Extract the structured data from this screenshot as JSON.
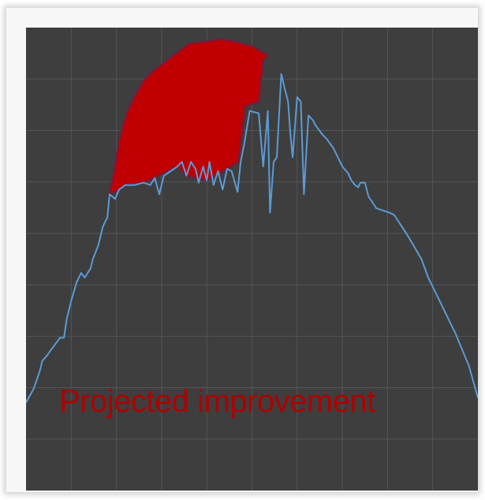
{
  "chart_data": {
    "type": "area",
    "title": "",
    "xlabel": "",
    "ylabel": "",
    "grid": true,
    "xlim": [
      0,
      100
    ],
    "ylim": [
      0,
      100
    ],
    "annotation": "Projected improvement",
    "colors": {
      "background": "#3e3e3e",
      "grid": "#555555",
      "series_line": "#5b9bd5",
      "projection_fill": "#c00000",
      "projection_stroke": "#7a1a3a",
      "annotation_text": "#b00000"
    },
    "series": [
      {
        "values": [
          [
            0,
            19
          ],
          [
            1.7,
            22
          ],
          [
            3.1,
            26
          ],
          [
            3.6,
            28
          ],
          [
            4.5,
            29
          ],
          [
            6,
            31
          ],
          [
            7.5,
            33
          ],
          [
            8.4,
            33
          ],
          [
            9,
            37
          ],
          [
            10,
            41
          ],
          [
            11.2,
            45
          ],
          [
            12.2,
            47
          ],
          [
            13,
            46
          ],
          [
            14.3,
            48
          ],
          [
            14.8,
            50
          ],
          [
            16,
            53
          ],
          [
            17,
            57
          ],
          [
            18,
            59
          ],
          [
            18.5,
            64
          ],
          [
            19.7,
            63
          ],
          [
            20.6,
            65
          ],
          [
            22,
            66
          ],
          [
            24,
            66
          ],
          [
            26,
            66.5
          ],
          [
            27.5,
            66
          ],
          [
            28.5,
            67.5
          ],
          [
            29.5,
            64
          ],
          [
            30.5,
            68
          ],
          [
            32,
            69
          ],
          [
            33.5,
            70
          ],
          [
            34.5,
            71
          ],
          [
            35.5,
            68
          ],
          [
            36.5,
            71
          ],
          [
            37.5,
            69.5
          ],
          [
            38.2,
            66.5
          ],
          [
            39.2,
            70
          ],
          [
            40,
            67
          ],
          [
            40.6,
            71
          ],
          [
            41.5,
            66
          ],
          [
            42.5,
            69
          ],
          [
            43.5,
            65
          ],
          [
            44.5,
            69.5
          ],
          [
            45.5,
            69
          ],
          [
            46.8,
            64.5
          ],
          [
            47.5,
            71
          ],
          [
            48.3,
            75
          ],
          [
            49.5,
            82
          ],
          [
            51.5,
            81.5
          ],
          [
            52.5,
            70
          ],
          [
            53.5,
            82
          ],
          [
            54,
            60
          ],
          [
            54.8,
            71
          ],
          [
            55.5,
            72
          ],
          [
            56.5,
            90
          ],
          [
            57.2,
            87
          ],
          [
            58,
            84
          ],
          [
            58.5,
            77
          ],
          [
            59,
            72
          ],
          [
            60,
            85
          ],
          [
            60.8,
            84
          ],
          [
            61.5,
            64
          ],
          [
            62.5,
            81
          ],
          [
            63.5,
            80
          ],
          [
            64,
            79
          ],
          [
            65.5,
            77
          ],
          [
            66.5,
            76
          ],
          [
            68,
            74
          ],
          [
            69,
            72
          ],
          [
            70,
            70
          ],
          [
            71.3,
            68.5
          ],
          [
            72,
            67
          ],
          [
            72.8,
            66
          ],
          [
            73.5,
            65.5
          ],
          [
            74,
            66.5
          ],
          [
            75,
            66.5
          ],
          [
            75.8,
            63.5
          ],
          [
            76.5,
            62.5
          ],
          [
            77.5,
            61
          ],
          [
            79,
            60.5
          ],
          [
            80.5,
            60
          ],
          [
            81.5,
            59.5
          ],
          [
            82.5,
            58
          ],
          [
            83.5,
            56.5
          ],
          [
            84.5,
            55
          ],
          [
            86,
            52.5
          ],
          [
            87.5,
            50
          ],
          [
            89,
            46
          ],
          [
            90.5,
            43
          ],
          [
            92,
            40
          ],
          [
            93.5,
            37
          ],
          [
            95,
            34
          ],
          [
            96.5,
            30.5
          ],
          [
            98,
            27
          ],
          [
            100,
            20
          ]
        ]
      }
    ],
    "projection_upper": [
      [
        18.5,
        64
      ],
      [
        19.5,
        69
      ],
      [
        20.5,
        75
      ],
      [
        21.5,
        79
      ],
      [
        22.5,
        82
      ],
      [
        24,
        85
      ],
      [
        26,
        88.5
      ],
      [
        28,
        90.5
      ],
      [
        30,
        92
      ],
      [
        32,
        93.5
      ],
      [
        34,
        95
      ],
      [
        36,
        96.5
      ],
      [
        38,
        96.8
      ],
      [
        40,
        97
      ],
      [
        43,
        97.5
      ],
      [
        46,
        97
      ],
      [
        50,
        96
      ],
      [
        53.5,
        94
      ]
    ],
    "projection_lower": [
      [
        53.5,
        94
      ],
      [
        52.5,
        93
      ],
      [
        51.5,
        84
      ],
      [
        48.5,
        83
      ],
      [
        47,
        71
      ],
      [
        44.5,
        69.5
      ],
      [
        40,
        67
      ],
      [
        35.5,
        68
      ],
      [
        33.5,
        70
      ],
      [
        26,
        66.5
      ],
      [
        22,
        66
      ],
      [
        20.6,
        65
      ],
      [
        18.5,
        64
      ]
    ]
  }
}
